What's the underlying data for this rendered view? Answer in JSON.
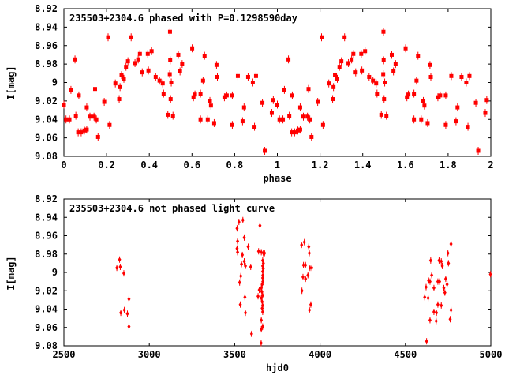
{
  "figure": {
    "background": "#ffffff",
    "frame_color": "#000000",
    "text_color": "#000000",
    "point_color": "#ff0000"
  },
  "chart_data": [
    {
      "type": "scatter",
      "title": "235503+2304.6 phased with P=0.1298590day",
      "xlabel": "phase",
      "ylabel": "I[mag]",
      "xlim": [
        0,
        2
      ],
      "ylim_top_to_bottom": [
        8.92,
        9.08
      ],
      "y_axis_note": "magnitude scale, brighter (smaller mag) at top",
      "grid": false,
      "legend": null,
      "marker": "filled-square-with-errorbar",
      "color": "#ff0000",
      "xticks": [
        0,
        0.2,
        0.4,
        0.6,
        0.8,
        1,
        1.2,
        1.4,
        1.6,
        1.8,
        2
      ],
      "xtick_labels": [
        "0",
        "0.2",
        "0.4",
        "0.6",
        "0.8",
        "1",
        "1.2",
        "1.4",
        "1.6",
        "1.8",
        "2"
      ],
      "yticks": [
        8.92,
        8.94,
        8.96,
        8.98,
        9,
        9.02,
        9.04,
        9.06,
        9.08
      ],
      "ytick_labels": [
        "8.92",
        "8.94",
        "8.96",
        "8.98",
        "9",
        "9.02",
        "9.04",
        "9.06",
        "9.08"
      ],
      "x_repeat_offsets": [
        0,
        1
      ],
      "points": [
        [
          0.0,
          9.024
        ],
        [
          0.01,
          9.04
        ],
        [
          0.026,
          9.04
        ],
        [
          0.033,
          9.008
        ],
        [
          0.052,
          8.975
        ],
        [
          0.056,
          9.036
        ],
        [
          0.067,
          9.054
        ],
        [
          0.07,
          9.014
        ],
        [
          0.081,
          9.054
        ],
        [
          0.096,
          9.052
        ],
        [
          0.107,
          9.051
        ],
        [
          0.107,
          9.027
        ],
        [
          0.122,
          9.037
        ],
        [
          0.141,
          9.037
        ],
        [
          0.146,
          9.007
        ],
        [
          0.152,
          9.04
        ],
        [
          0.16,
          9.059
        ],
        [
          0.189,
          9.021
        ],
        [
          0.207,
          8.951
        ],
        [
          0.214,
          9.046
        ],
        [
          0.241,
          9.001
        ],
        [
          0.259,
          9.018
        ],
        [
          0.263,
          9.005
        ],
        [
          0.27,
          8.992
        ],
        [
          0.281,
          8.996
        ],
        [
          0.291,
          8.983
        ],
        [
          0.3,
          8.977
        ],
        [
          0.315,
          8.951
        ],
        [
          0.333,
          8.979
        ],
        [
          0.348,
          8.975
        ],
        [
          0.356,
          8.969
        ],
        [
          0.367,
          8.989
        ],
        [
          0.393,
          8.969
        ],
        [
          0.396,
          8.987
        ],
        [
          0.411,
          8.966
        ],
        [
          0.43,
          8.994
        ],
        [
          0.448,
          8.998
        ],
        [
          0.463,
          9.001
        ],
        [
          0.467,
          9.012
        ],
        [
          0.487,
          9.035
        ],
        [
          0.497,
          8.945
        ],
        [
          0.498,
          8.976
        ],
        [
          0.496,
          8.991
        ],
        [
          0.503,
          9.0
        ],
        [
          0.5,
          9.018
        ],
        [
          0.511,
          9.036
        ],
        [
          0.536,
          8.97
        ],
        [
          0.544,
          8.988
        ],
        [
          0.554,
          8.98
        ],
        [
          0.601,
          8.963
        ],
        [
          0.607,
          9.016
        ],
        [
          0.614,
          9.013
        ],
        [
          0.64,
          9.012
        ],
        [
          0.64,
          9.04
        ],
        [
          0.652,
          8.998
        ],
        [
          0.659,
          8.971
        ],
        [
          0.674,
          9.04
        ],
        [
          0.684,
          9.02
        ],
        [
          0.689,
          9.025
        ],
        [
          0.704,
          9.044
        ],
        [
          0.715,
          8.981
        ],
        [
          0.719,
          8.994
        ],
        [
          0.752,
          9.016
        ],
        [
          0.763,
          9.014
        ],
        [
          0.789,
          9.014
        ],
        [
          0.789,
          9.046
        ],
        [
          0.815,
          8.993
        ],
        [
          0.837,
          9.042
        ],
        [
          0.844,
          9.027
        ],
        [
          0.863,
          8.994
        ],
        [
          0.885,
          9.0
        ],
        [
          0.893,
          9.048
        ],
        [
          0.9,
          8.993
        ],
        [
          0.93,
          9.022
        ],
        [
          0.941,
          9.074
        ],
        [
          0.974,
          9.033
        ],
        [
          0.981,
          9.019
        ]
      ]
    },
    {
      "type": "scatter",
      "title": "235503+2304.6 not phased light curve",
      "xlabel": "hjd0",
      "ylabel": "I[mag]",
      "xlim": [
        2500,
        5000
      ],
      "ylim_top_to_bottom": [
        8.92,
        9.08
      ],
      "y_axis_note": "magnitude scale, brighter (smaller mag) at top",
      "grid": false,
      "legend": null,
      "marker": "small-diamond-with-errorbar",
      "color": "#ff0000",
      "xticks": [
        2500,
        3000,
        3500,
        4000,
        4500,
        5000
      ],
      "xtick_labels": [
        "2500",
        "3000",
        "3500",
        "4000",
        "4500",
        "5000"
      ],
      "yticks": [
        8.92,
        8.94,
        8.96,
        8.98,
        9,
        9.02,
        9.04,
        9.06,
        9.08
      ],
      "ytick_labels": [
        "8.92",
        "8.94",
        "8.96",
        "8.98",
        "9",
        "9.02",
        "9.04",
        "9.06",
        "9.08"
      ],
      "x_repeat_offsets": [
        0
      ],
      "points": [
        [
          2826,
          8.986
        ],
        [
          2810,
          8.995
        ],
        [
          2830,
          8.994
        ],
        [
          2851,
          9.001
        ],
        [
          2881,
          9.029
        ],
        [
          2854,
          9.041
        ],
        [
          2833,
          9.044
        ],
        [
          2872,
          9.045
        ],
        [
          2881,
          9.059
        ],
        [
          3525,
          8.945
        ],
        [
          3548,
          8.943
        ],
        [
          3514,
          8.952
        ],
        [
          3556,
          8.962
        ],
        [
          3517,
          8.966
        ],
        [
          3514,
          8.974
        ],
        [
          3579,
          8.972
        ],
        [
          3517,
          8.978
        ],
        [
          3545,
          8.981
        ],
        [
          3556,
          8.988
        ],
        [
          3540,
          8.991
        ],
        [
          3563,
          8.993
        ],
        [
          3594,
          8.994
        ],
        [
          3536,
          9.004
        ],
        [
          3529,
          9.011
        ],
        [
          3560,
          9.027
        ],
        [
          3533,
          9.035
        ],
        [
          3563,
          9.044
        ],
        [
          3599,
          9.067
        ],
        [
          3648,
          8.949
        ],
        [
          3640,
          8.977
        ],
        [
          3656,
          8.978
        ],
        [
          3668,
          8.979
        ],
        [
          3675,
          8.979
        ],
        [
          3664,
          8.987
        ],
        [
          3668,
          8.99
        ],
        [
          3664,
          8.993
        ],
        [
          3667,
          8.996
        ],
        [
          3664,
          8.999
        ],
        [
          3665,
          9.003
        ],
        [
          3664,
          9.006
        ],
        [
          3665,
          9.01
        ],
        [
          3661,
          9.013
        ],
        [
          3656,
          9.017
        ],
        [
          3644,
          9.019
        ],
        [
          3659,
          9.021
        ],
        [
          3637,
          9.026
        ],
        [
          3664,
          9.025
        ],
        [
          3656,
          9.028
        ],
        [
          3661,
          9.032
        ],
        [
          3664,
          9.036
        ],
        [
          3661,
          9.039
        ],
        [
          3664,
          9.043
        ],
        [
          3656,
          9.052
        ],
        [
          3664,
          9.059
        ],
        [
          3656,
          9.062
        ],
        [
          3655,
          9.077
        ],
        [
          3908,
          8.967
        ],
        [
          3892,
          8.97
        ],
        [
          3934,
          8.972
        ],
        [
          3937,
          8.979
        ],
        [
          3903,
          8.992
        ],
        [
          3915,
          8.992
        ],
        [
          3941,
          8.995
        ],
        [
          3952,
          8.995
        ],
        [
          3929,
          9.003
        ],
        [
          3900,
          9.005
        ],
        [
          3915,
          9.007
        ],
        [
          3894,
          9.02
        ],
        [
          3946,
          9.035
        ],
        [
          3938,
          9.041
        ],
        [
          4767,
          8.969
        ],
        [
          4749,
          8.979
        ],
        [
          4648,
          8.987
        ],
        [
          4697,
          8.987
        ],
        [
          4710,
          8.988
        ],
        [
          4752,
          8.99
        ],
        [
          4716,
          8.993
        ],
        [
          4654,
          9.003
        ],
        [
          4636,
          9.009
        ],
        [
          4644,
          9.01
        ],
        [
          4690,
          9.01
        ],
        [
          4700,
          9.01
        ],
        [
          4736,
          9.007
        ],
        [
          4744,
          9.013
        ],
        [
          4621,
          9.016
        ],
        [
          4667,
          9.017
        ],
        [
          4725,
          9.017
        ],
        [
          4731,
          9.022
        ],
        [
          4613,
          9.027
        ],
        [
          4633,
          9.028
        ],
        [
          4690,
          9.035
        ],
        [
          4710,
          9.036
        ],
        [
          4667,
          9.043
        ],
        [
          4682,
          9.044
        ],
        [
          4644,
          9.052
        ],
        [
          4680,
          9.053
        ],
        [
          4767,
          9.041
        ],
        [
          4762,
          9.051
        ],
        [
          4624,
          9.075
        ],
        [
          4998,
          9.002
        ]
      ]
    }
  ]
}
